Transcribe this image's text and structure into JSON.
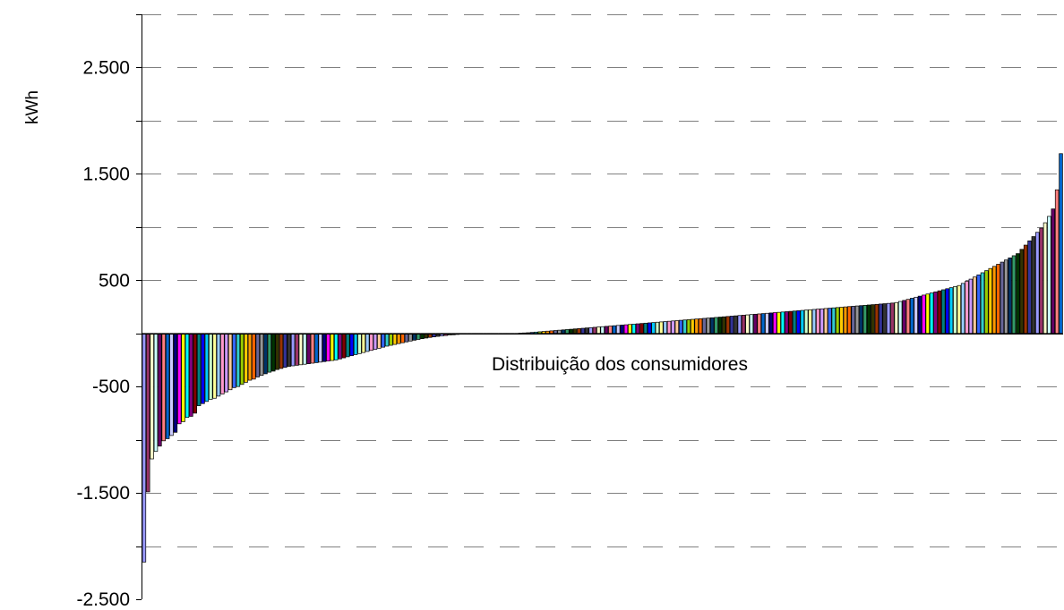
{
  "chart_data": {
    "type": "bar",
    "title": "",
    "xlabel": "Distribuição dos consumidores",
    "ylabel": "kWh",
    "ylim": [
      -2500,
      3000
    ],
    "yticks": [
      2500,
      1500,
      500,
      -500,
      -1500,
      -2500
    ],
    "ytick_labels": [
      "2.500",
      "1.500",
      "500",
      "-500",
      "-1.500",
      "-2.500"
    ],
    "grid": "horizontal dashed",
    "legend": "none",
    "bar_outline_color": "#000000",
    "grid_color": "#808080",
    "palette": [
      "#9999ff",
      "#993366",
      "#ffffcc",
      "#ccffff",
      "#660066",
      "#ff8080",
      "#0066cc",
      "#ccccff",
      "#000080",
      "#ff00ff",
      "#ffff00",
      "#00ffff",
      "#800080",
      "#800000",
      "#008080",
      "#0000ff",
      "#00ccff",
      "#ccffcc",
      "#ffff99",
      "#99ccff",
      "#ff99cc",
      "#cc99ff",
      "#ffcc99",
      "#3366ff",
      "#33cccc",
      "#99cc00",
      "#ffcc00",
      "#ff9900",
      "#ff6600",
      "#666699",
      "#969696",
      "#003366",
      "#339966",
      "#003300",
      "#333300",
      "#993300",
      "#333399",
      "#333333"
    ],
    "values": [
      -2150,
      -1490,
      -1180,
      -1110,
      -1060,
      -1010,
      -990,
      -960,
      -930,
      -850,
      -830,
      -790,
      -780,
      -750,
      -680,
      -660,
      -640,
      -620,
      -610,
      -590,
      -570,
      -550,
      -530,
      -510,
      -500,
      -480,
      -460,
      -440,
      -430,
      -410,
      -395,
      -380,
      -365,
      -355,
      -340,
      -330,
      -320,
      -310,
      -305,
      -300,
      -295,
      -290,
      -285,
      -280,
      -275,
      -270,
      -265,
      -260,
      -255,
      -250,
      -240,
      -230,
      -220,
      -210,
      -200,
      -190,
      -180,
      -170,
      -160,
      -150,
      -140,
      -130,
      -120,
      -112,
      -104,
      -96,
      -88,
      -80,
      -72,
      -64,
      -57,
      -50,
      -44,
      -38,
      -33,
      -28,
      -24,
      -20,
      -16,
      -13,
      -10,
      -7,
      -5,
      -3,
      -2,
      -1,
      -1,
      0,
      0,
      0,
      0,
      0,
      0,
      0,
      0,
      0,
      2,
      4,
      6,
      9,
      12,
      15,
      18,
      21,
      24,
      27,
      30,
      33,
      36,
      39,
      42,
      45,
      48,
      51,
      54,
      57,
      60,
      63,
      66,
      69,
      72,
      75,
      78,
      81,
      84,
      87,
      90,
      93,
      96,
      99,
      102,
      105,
      108,
      111,
      114,
      117,
      120,
      123,
      126,
      129,
      132,
      135,
      138,
      141,
      144,
      147,
      150,
      153,
      156,
      159,
      162,
      165,
      168,
      171,
      174,
      177,
      180,
      183,
      186,
      189,
      192,
      195,
      198,
      201,
      204,
      207,
      210,
      213,
      216,
      219,
      222,
      225,
      228,
      231,
      234,
      237,
      240,
      243,
      246,
      249,
      252,
      255,
      258,
      261,
      264,
      267,
      270,
      273,
      276,
      279,
      282,
      285,
      290,
      300,
      310,
      320,
      330,
      340,
      350,
      360,
      370,
      380,
      390,
      400,
      410,
      420,
      430,
      440,
      450,
      470,
      490,
      510,
      530,
      550,
      570,
      590,
      610,
      630,
      650,
      670,
      690,
      710,
      730,
      750,
      790,
      830,
      870,
      910,
      950,
      990,
      1040,
      1100,
      1170,
      1350,
      1690
    ]
  }
}
